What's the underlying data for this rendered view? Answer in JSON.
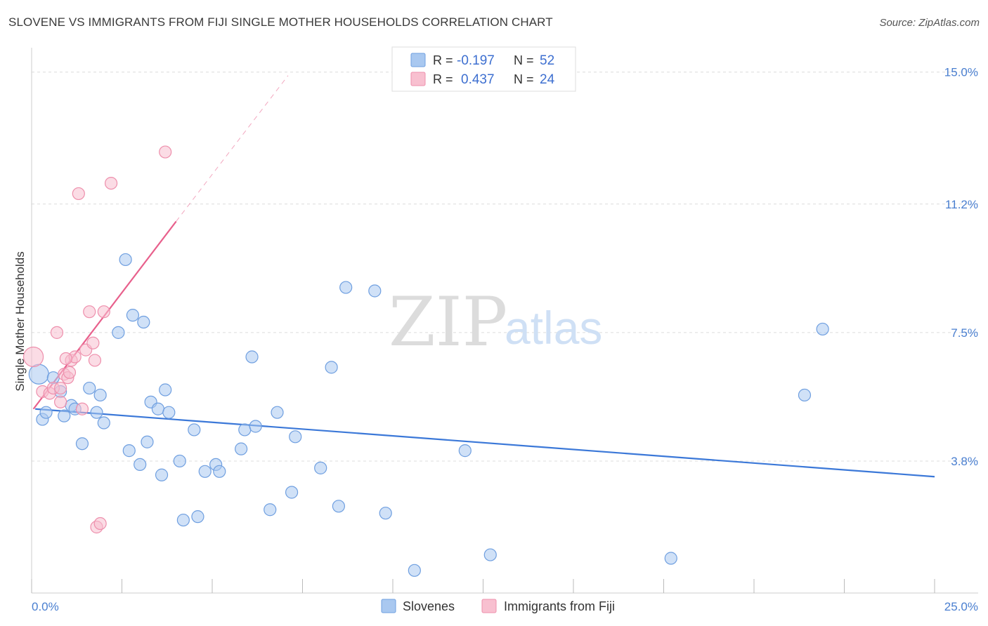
{
  "header": {
    "title": "SLOVENE VS IMMIGRANTS FROM FIJI SINGLE MOTHER HOUSEHOLDS CORRELATION CHART",
    "source": "Source: ZipAtlas.com"
  },
  "watermark": {
    "zip": "ZIP",
    "atlas": "atlas"
  },
  "legend_box": {
    "rows": [
      {
        "r_label": "R =",
        "r_value": "-0.197",
        "n_label": "N =",
        "n_value": "52",
        "color": "#a9c8f0",
        "stroke": "#6f9fe0"
      },
      {
        "r_label": "R =",
        "r_value": "0.437",
        "n_label": "N =",
        "n_value": "24",
        "color": "#f8c0d0",
        "stroke": "#ee8fac"
      }
    ]
  },
  "bottom_legend": [
    {
      "label": "Slovenes",
      "color": "#a9c8f0",
      "stroke": "#6f9fe0"
    },
    {
      "label": "Immigrants from Fiji",
      "color": "#f8c0d0",
      "stroke": "#ee8fac"
    }
  ],
  "chart_data": {
    "type": "scatter",
    "title": "SLOVENE VS IMMIGRANTS FROM FIJI SINGLE MOTHER HOUSEHOLDS CORRELATION CHART",
    "xlabel": "",
    "ylabel": "Single Mother Households",
    "xlim": [
      0,
      25
    ],
    "ylim": [
      0,
      15.5
    ],
    "x_tick_labels": [
      "0.0%",
      "25.0%"
    ],
    "y_ticks": [
      3.8,
      7.5,
      11.2,
      15.0
    ],
    "y_tick_labels": [
      "3.8%",
      "7.5%",
      "11.2%",
      "15.0%"
    ],
    "grid": true,
    "legend_position": "top-center",
    "series": [
      {
        "name": "Slovenes",
        "color": "#a9c8f0",
        "stroke": "#6f9fe0",
        "trend_color": "#3b78d8",
        "trend": {
          "x": [
            0.1,
            25.0
          ],
          "y": [
            5.3,
            3.35
          ]
        },
        "points": [
          [
            0.2,
            6.3
          ],
          [
            0.3,
            5.0
          ],
          [
            0.4,
            5.2
          ],
          [
            0.6,
            6.2
          ],
          [
            0.8,
            5.8
          ],
          [
            0.9,
            5.1
          ],
          [
            1.1,
            5.4
          ],
          [
            1.2,
            5.3
          ],
          [
            1.4,
            4.3
          ],
          [
            1.6,
            5.9
          ],
          [
            1.8,
            5.2
          ],
          [
            1.9,
            5.7
          ],
          [
            2.0,
            4.9
          ],
          [
            2.4,
            7.5
          ],
          [
            2.6,
            9.6
          ],
          [
            2.7,
            4.1
          ],
          [
            2.8,
            8.0
          ],
          [
            3.0,
            3.7
          ],
          [
            3.1,
            7.8
          ],
          [
            3.2,
            4.35
          ],
          [
            3.3,
            5.5
          ],
          [
            3.5,
            5.3
          ],
          [
            3.6,
            3.4
          ],
          [
            3.7,
            5.85
          ],
          [
            3.8,
            5.2
          ],
          [
            4.1,
            3.8
          ],
          [
            4.2,
            2.1
          ],
          [
            4.5,
            4.7
          ],
          [
            4.6,
            2.2
          ],
          [
            4.8,
            3.5
          ],
          [
            5.1,
            3.7
          ],
          [
            5.2,
            3.5
          ],
          [
            5.8,
            4.15
          ],
          [
            5.9,
            4.7
          ],
          [
            6.1,
            6.8
          ],
          [
            6.2,
            4.8
          ],
          [
            6.6,
            2.4
          ],
          [
            6.8,
            5.2
          ],
          [
            7.2,
            2.9
          ],
          [
            7.3,
            4.5
          ],
          [
            8.0,
            3.6
          ],
          [
            8.3,
            6.5
          ],
          [
            8.5,
            2.5
          ],
          [
            8.7,
            8.8
          ],
          [
            9.5,
            8.7
          ],
          [
            9.8,
            2.3
          ],
          [
            10.6,
            0.65
          ],
          [
            12.0,
            4.1
          ],
          [
            12.7,
            1.1
          ],
          [
            17.7,
            1.0
          ],
          [
            21.4,
            5.7
          ],
          [
            21.9,
            7.6
          ]
        ]
      },
      {
        "name": "Immigrants from Fiji",
        "color": "#f8c0d0",
        "stroke": "#ee8fac",
        "trend_color": "#e8608c",
        "trend": {
          "x": [
            0.05,
            4.0
          ],
          "y": [
            5.3,
            10.7
          ]
        },
        "trend_ext": {
          "x": [
            4.0,
            7.1
          ],
          "y": [
            10.7,
            14.9
          ]
        },
        "points": [
          [
            0.05,
            6.8
          ],
          [
            0.3,
            5.8
          ],
          [
            0.5,
            5.75
          ],
          [
            0.6,
            5.9
          ],
          [
            0.7,
            7.5
          ],
          [
            0.8,
            5.5
          ],
          [
            0.9,
            6.3
          ],
          [
            1.0,
            6.2
          ],
          [
            1.1,
            6.7
          ],
          [
            1.2,
            6.8
          ],
          [
            1.3,
            11.5
          ],
          [
            1.4,
            5.3
          ],
          [
            1.5,
            7.0
          ],
          [
            1.6,
            8.1
          ],
          [
            1.7,
            7.2
          ],
          [
            1.75,
            6.7
          ],
          [
            1.8,
            1.9
          ],
          [
            1.9,
            2.0
          ],
          [
            2.0,
            8.1
          ],
          [
            2.2,
            11.8
          ],
          [
            3.7,
            12.7
          ],
          [
            0.8,
            5.9
          ],
          [
            1.05,
            6.35
          ],
          [
            0.95,
            6.75
          ]
        ]
      }
    ]
  }
}
